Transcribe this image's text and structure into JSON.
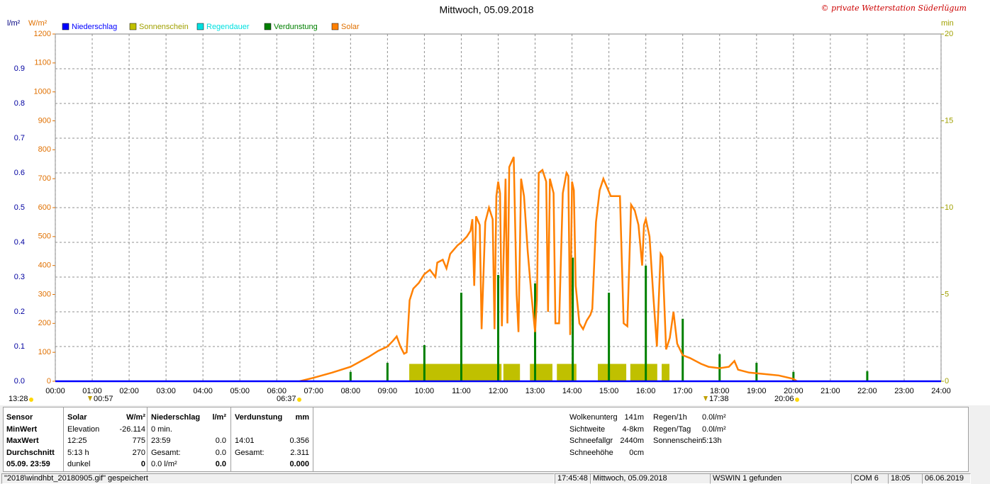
{
  "chart_data": {
    "type": "line",
    "title": "Mittwoch, 05.09.2018",
    "credit": "© private Wetterstation Süderlügum",
    "y_label": "l/m²",
    "y2_label": "W/m²",
    "y3_label": "min",
    "xlim": [
      0,
      24
    ],
    "xticks": [
      {
        "value": 0,
        "label": "00:00"
      },
      {
        "value": 1,
        "label": "01:00"
      },
      {
        "value": 2,
        "label": "02:00"
      },
      {
        "value": 3,
        "label": "03:00"
      },
      {
        "value": 4,
        "label": "04:00"
      },
      {
        "value": 5,
        "label": "05:00"
      },
      {
        "value": 6,
        "label": "06:00"
      },
      {
        "value": 7,
        "label": "07:00"
      },
      {
        "value": 8,
        "label": "08:00"
      },
      {
        "value": 9,
        "label": "09:00"
      },
      {
        "value": 10,
        "label": "10:00"
      },
      {
        "value": 11,
        "label": "11:00"
      },
      {
        "value": 12,
        "label": "12:00"
      },
      {
        "value": 13,
        "label": "13:00"
      },
      {
        "value": 14,
        "label": "14:00"
      },
      {
        "value": 15,
        "label": "15:00"
      },
      {
        "value": 16,
        "label": "16:00"
      },
      {
        "value": 17,
        "label": "17:00"
      },
      {
        "value": 18,
        "label": "18:00"
      },
      {
        "value": 19,
        "label": "19:00"
      },
      {
        "value": 20,
        "label": "20:00"
      },
      {
        "value": 21,
        "label": "21:00"
      },
      {
        "value": 22,
        "label": "22:00"
      },
      {
        "value": 23,
        "label": "23:00"
      },
      {
        "value": 24,
        "label": "24:00"
      }
    ],
    "ylim": [
      0,
      1
    ],
    "yticks": [
      {
        "value": 0,
        "label": "0.0"
      },
      0.1,
      0.2,
      0.3,
      0.4,
      0.5,
      0.6,
      0.7,
      0.8,
      0.9
    ],
    "y2lim": [
      0,
      1200
    ],
    "y2ticks": [
      0,
      100,
      200,
      300,
      400,
      500,
      600,
      700,
      800,
      900,
      1000,
      1100,
      1200
    ],
    "y3lim": [
      0,
      20
    ],
    "y3ticks": [
      0,
      5,
      10,
      15,
      20
    ],
    "grid": true,
    "series": [
      {
        "name": "Niederschlag",
        "color": "#0000ff",
        "type": "line",
        "axis": "y",
        "x": [
          0,
          24
        ],
        "values": [
          0,
          0
        ]
      },
      {
        "name": "Sonnenschein",
        "color": "#c0c000",
        "type": "bar",
        "axis": "y3",
        "x_start": [
          9.59,
          12.14,
          12.86,
          13.59,
          14.7,
          15.58,
          16.43
        ],
        "x_end": [
          12.09,
          12.59,
          13.47,
          14.12,
          15.47,
          16.31,
          16.64
        ],
        "values": [
          1,
          1,
          1,
          1,
          1,
          1,
          1
        ]
      },
      {
        "name": "Regendauer",
        "color": "#00e0e0",
        "type": "line",
        "axis": "y",
        "x": [],
        "values": []
      },
      {
        "name": "Verdunstung",
        "color": "#008000",
        "type": "spike",
        "axis": "y",
        "x": [
          8.0,
          9.0,
          10.0,
          11.0,
          12.0,
          13.0,
          14.02,
          15.0,
          16.0,
          17.0,
          18.0,
          19.0,
          20.0,
          22.0
        ],
        "values": [
          0.027,
          0.053,
          0.104,
          0.255,
          0.306,
          0.282,
          0.356,
          0.255,
          0.333,
          0.18,
          0.078,
          0.053,
          0.027,
          0.029
        ]
      },
      {
        "name": "Solar",
        "color": "#ff8000",
        "type": "line",
        "axis": "y2",
        "x": [
          6.62,
          7.0,
          7.5,
          8.0,
          8.5,
          8.75,
          9.0,
          9.15,
          9.25,
          9.35,
          9.45,
          9.52,
          9.6,
          9.7,
          9.85,
          10.0,
          10.15,
          10.3,
          10.35,
          10.5,
          10.6,
          10.7,
          10.9,
          11.0,
          11.15,
          11.25,
          11.3,
          11.35,
          11.4,
          11.5,
          11.55,
          11.65,
          11.75,
          11.85,
          11.9,
          11.95,
          12.0,
          12.05,
          12.1,
          12.2,
          12.25,
          12.3,
          12.42,
          12.5,
          12.55,
          12.62,
          12.7,
          12.8,
          12.9,
          13.0,
          13.05,
          13.1,
          13.2,
          13.3,
          13.35,
          13.4,
          13.5,
          13.55,
          13.65,
          13.75,
          13.85,
          13.9,
          13.95,
          14.0,
          14.05,
          14.1,
          14.2,
          14.3,
          14.4,
          14.5,
          14.55,
          14.65,
          14.75,
          14.85,
          14.95,
          15.05,
          15.2,
          15.3,
          15.4,
          15.5,
          15.6,
          15.7,
          15.8,
          15.9,
          15.95,
          16.0,
          16.1,
          16.2,
          16.3,
          16.4,
          16.45,
          16.55,
          16.65,
          16.75,
          16.85,
          17.0,
          17.2,
          17.5,
          17.7,
          18.0,
          18.25,
          18.4,
          18.5,
          18.8,
          19.2,
          19.6,
          20.0,
          20.1
        ],
        "values": [
          0,
          12,
          30,
          50,
          85,
          105,
          120,
          140,
          155,
          120,
          95,
          100,
          280,
          320,
          340,
          370,
          385,
          360,
          410,
          420,
          390,
          440,
          470,
          480,
          500,
          520,
          560,
          330,
          570,
          540,
          180,
          550,
          600,
          560,
          180,
          640,
          690,
          650,
          190,
          700,
          200,
          740,
          775,
          300,
          170,
          700,
          640,
          450,
          300,
          170,
          280,
          720,
          730,
          690,
          240,
          700,
          650,
          200,
          200,
          650,
          720,
          710,
          160,
          690,
          660,
          330,
          200,
          180,
          210,
          230,
          250,
          550,
          660,
          700,
          670,
          640,
          640,
          640,
          200,
          190,
          610,
          590,
          540,
          400,
          540,
          560,
          500,
          300,
          120,
          440,
          430,
          110,
          150,
          240,
          130,
          90,
          80,
          60,
          50,
          45,
          50,
          70,
          40,
          30,
          25,
          20,
          8,
          0
        ]
      }
    ],
    "time_markers": [
      "13:28",
      "00:57",
      "06:37",
      "17:38",
      "20:06"
    ]
  },
  "stats_table": {
    "rows": [
      [
        "Sensor",
        "Solar",
        "W/m²",
        "Niederschlag",
        "l/m²",
        "Verdunstung",
        "mm"
      ],
      [
        "MinWert",
        "Elevation",
        "-26.114",
        "0 min.",
        null,
        null,
        null
      ],
      [
        "MaxWert",
        "12:25",
        "775",
        "23:59",
        "0.0",
        "14:01",
        "0.356"
      ],
      [
        "Durchschnitt",
        "5:13 h",
        "270",
        "Gesamt:",
        "0.0",
        "Gesamt:",
        "2.311"
      ],
      [
        "05.09. 23:59",
        "dunkel",
        "0",
        "0.0 l/m²",
        "0.0",
        null,
        "0.000"
      ]
    ]
  },
  "extra_stats": {
    "left": [
      [
        "Wolkenunterg",
        "141m"
      ],
      [
        "Sichtweite",
        "4-8km"
      ],
      [
        "Schneefallgr",
        "2440m"
      ],
      [
        "Schneehöhe",
        "0cm"
      ]
    ],
    "right": [
      [
        "Regen/1h",
        "0.0l/m²"
      ],
      [
        "Regen/Tag",
        "0.0l/m²"
      ],
      [
        "Sonnenschein",
        "5:13h"
      ]
    ]
  },
  "status_bar": {
    "items": [
      "\"2018\\windhbt_20180905.gif\" gespeichert",
      "17:45:48",
      "Mittwoch, 05.09.2018",
      "WSWIN 1 gefunden",
      "COM 6",
      "18:05",
      "06.06.2019"
    ]
  }
}
